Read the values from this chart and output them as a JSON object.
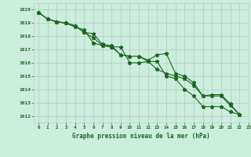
{
  "title": "Graphe pression niveau de la mer (hPa)",
  "background_color": "#cceedd",
  "grid_color": "#bbcccc",
  "line_color": "#1a6620",
  "marker_color": "#1a6620",
  "xlim": [
    -0.5,
    23
  ],
  "ylim": [
    1011.5,
    1020.5
  ],
  "yticks": [
    1012,
    1013,
    1014,
    1015,
    1016,
    1017,
    1018,
    1019,
    1020
  ],
  "xticks": [
    0,
    1,
    2,
    3,
    4,
    5,
    6,
    7,
    8,
    9,
    10,
    11,
    12,
    13,
    14,
    15,
    16,
    17,
    18,
    19,
    20,
    21,
    22,
    23
  ],
  "series": [
    [
      1019.8,
      1019.3,
      1019.1,
      1019.0,
      1018.7,
      1018.5,
      1017.5,
      1017.3,
      1017.2,
      1017.2,
      1016.0,
      1016.0,
      1016.1,
      1016.1,
      1015.0,
      1014.8,
      1014.0,
      1013.5,
      1012.7,
      1012.7,
      1012.7,
      1012.3,
      1012.1
    ],
    [
      1019.8,
      1019.3,
      1019.1,
      1019.0,
      1018.8,
      1018.3,
      1018.2,
      1017.4,
      1017.3,
      1016.6,
      1016.5,
      1016.5,
      1016.2,
      1016.6,
      1016.7,
      1015.2,
      1015.0,
      1014.5,
      1013.5,
      1013.6,
      1013.6,
      1012.9,
      1012.1
    ],
    [
      1019.8,
      1019.3,
      1019.1,
      1019.0,
      1018.8,
      1018.3,
      1017.9,
      1017.3,
      1017.2,
      1016.6,
      1016.5,
      1016.5,
      1016.1,
      1015.5,
      1015.2,
      1015.0,
      1014.8,
      1014.3,
      1013.5,
      1013.5,
      1013.5,
      1012.8,
      1012.1
    ]
  ]
}
